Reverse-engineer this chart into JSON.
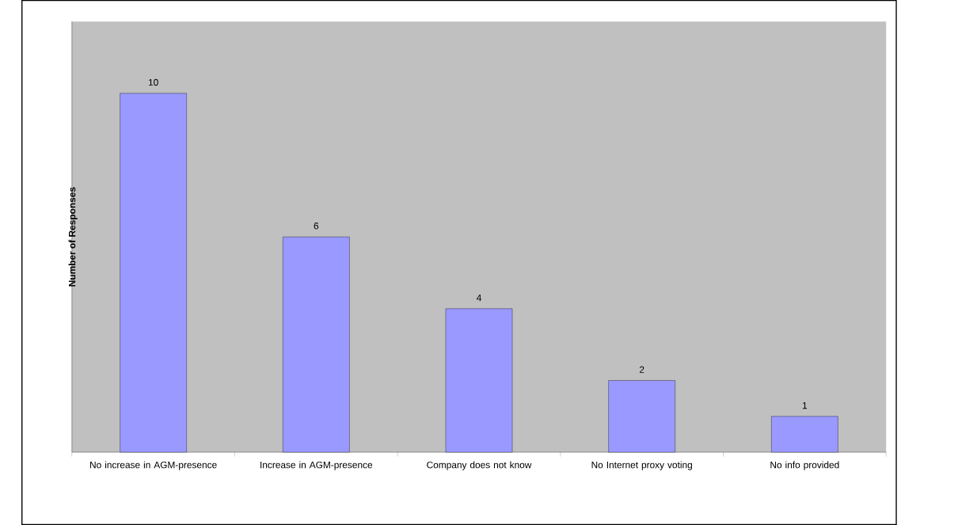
{
  "chart_data": {
    "type": "bar",
    "ylabel": "Number of Responses",
    "categories": [
      "No increase in AGM-presence",
      "Increase in AGM-presence",
      "Company does not know",
      "No Internet proxy voting",
      "No info provided"
    ],
    "values": [
      10,
      6,
      4,
      2,
      1
    ],
    "color": "#9999ff",
    "data_labels": true
  }
}
